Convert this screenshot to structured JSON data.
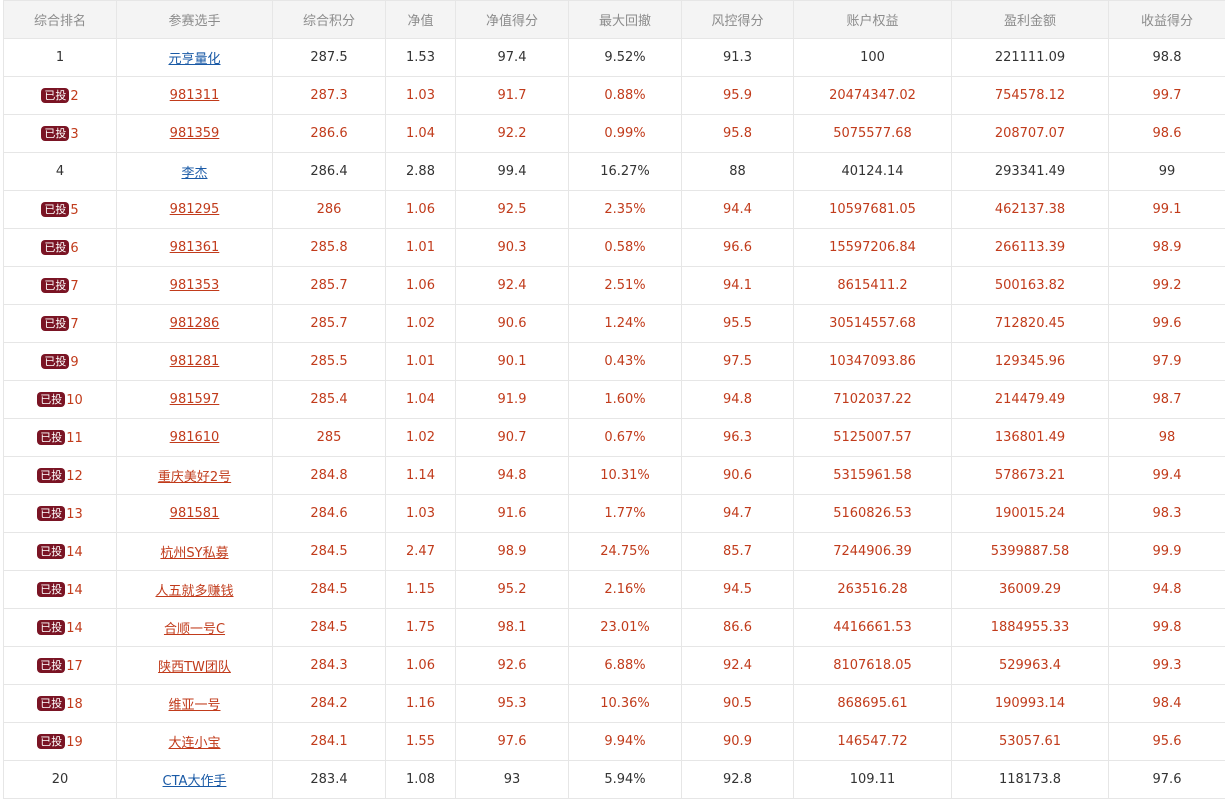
{
  "columns": [
    "综合排名",
    "参赛选手",
    "综合积分",
    "净值",
    "净值得分",
    "最大回撤",
    "风控得分",
    "账户权益",
    "盈利金额",
    "收益得分"
  ],
  "badge_label": "已投",
  "colors": {
    "invested_text": "#c13b1b",
    "normal_link": "#1a5aa6",
    "badge_bg": "#7a1424",
    "header_bg": "#f4f4f4"
  },
  "rows": [
    {
      "rank": "1",
      "invested": false,
      "name": "元亨量化",
      "score": "287.5",
      "nav": "1.53",
      "nav_score": "97.4",
      "max_dd": "9.52%",
      "risk_score": "91.3",
      "equity": "100",
      "profit": "221111.09",
      "return_score": "98.8"
    },
    {
      "rank": "2",
      "invested": true,
      "name": "981311",
      "score": "287.3",
      "nav": "1.03",
      "nav_score": "91.7",
      "max_dd": "0.88%",
      "risk_score": "95.9",
      "equity": "20474347.02",
      "profit": "754578.12",
      "return_score": "99.7"
    },
    {
      "rank": "3",
      "invested": true,
      "name": "981359",
      "score": "286.6",
      "nav": "1.04",
      "nav_score": "92.2",
      "max_dd": "0.99%",
      "risk_score": "95.8",
      "equity": "5075577.68",
      "profit": "208707.07",
      "return_score": "98.6"
    },
    {
      "rank": "4",
      "invested": false,
      "name": "李杰",
      "score": "286.4",
      "nav": "2.88",
      "nav_score": "99.4",
      "max_dd": "16.27%",
      "risk_score": "88",
      "equity": "40124.14",
      "profit": "293341.49",
      "return_score": "99"
    },
    {
      "rank": "5",
      "invested": true,
      "name": "981295",
      "score": "286",
      "nav": "1.06",
      "nav_score": "92.5",
      "max_dd": "2.35%",
      "risk_score": "94.4",
      "equity": "10597681.05",
      "profit": "462137.38",
      "return_score": "99.1"
    },
    {
      "rank": "6",
      "invested": true,
      "name": "981361",
      "score": "285.8",
      "nav": "1.01",
      "nav_score": "90.3",
      "max_dd": "0.58%",
      "risk_score": "96.6",
      "equity": "15597206.84",
      "profit": "266113.39",
      "return_score": "98.9"
    },
    {
      "rank": "7",
      "invested": true,
      "name": "981353",
      "score": "285.7",
      "nav": "1.06",
      "nav_score": "92.4",
      "max_dd": "2.51%",
      "risk_score": "94.1",
      "equity": "8615411.2",
      "profit": "500163.82",
      "return_score": "99.2"
    },
    {
      "rank": "7",
      "invested": true,
      "name": "981286",
      "score": "285.7",
      "nav": "1.02",
      "nav_score": "90.6",
      "max_dd": "1.24%",
      "risk_score": "95.5",
      "equity": "30514557.68",
      "profit": "712820.45",
      "return_score": "99.6"
    },
    {
      "rank": "9",
      "invested": true,
      "name": "981281",
      "score": "285.5",
      "nav": "1.01",
      "nav_score": "90.1",
      "max_dd": "0.43%",
      "risk_score": "97.5",
      "equity": "10347093.86",
      "profit": "129345.96",
      "return_score": "97.9"
    },
    {
      "rank": "10",
      "invested": true,
      "name": "981597",
      "score": "285.4",
      "nav": "1.04",
      "nav_score": "91.9",
      "max_dd": "1.60%",
      "risk_score": "94.8",
      "equity": "7102037.22",
      "profit": "214479.49",
      "return_score": "98.7"
    },
    {
      "rank": "11",
      "invested": true,
      "name": "981610",
      "score": "285",
      "nav": "1.02",
      "nav_score": "90.7",
      "max_dd": "0.67%",
      "risk_score": "96.3",
      "equity": "5125007.57",
      "profit": "136801.49",
      "return_score": "98"
    },
    {
      "rank": "12",
      "invested": true,
      "name": "重庆美好2号",
      "score": "284.8",
      "nav": "1.14",
      "nav_score": "94.8",
      "max_dd": "10.31%",
      "risk_score": "90.6",
      "equity": "5315961.58",
      "profit": "578673.21",
      "return_score": "99.4"
    },
    {
      "rank": "13",
      "invested": true,
      "name": "981581",
      "score": "284.6",
      "nav": "1.03",
      "nav_score": "91.6",
      "max_dd": "1.77%",
      "risk_score": "94.7",
      "equity": "5160826.53",
      "profit": "190015.24",
      "return_score": "98.3"
    },
    {
      "rank": "14",
      "invested": true,
      "name": "杭州SY私募",
      "score": "284.5",
      "nav": "2.47",
      "nav_score": "98.9",
      "max_dd": "24.75%",
      "risk_score": "85.7",
      "equity": "7244906.39",
      "profit": "5399887.58",
      "return_score": "99.9"
    },
    {
      "rank": "14",
      "invested": true,
      "name": "人五就多赚钱",
      "score": "284.5",
      "nav": "1.15",
      "nav_score": "95.2",
      "max_dd": "2.16%",
      "risk_score": "94.5",
      "equity": "263516.28",
      "profit": "36009.29",
      "return_score": "94.8"
    },
    {
      "rank": "14",
      "invested": true,
      "name": "合顺一号C",
      "score": "284.5",
      "nav": "1.75",
      "nav_score": "98.1",
      "max_dd": "23.01%",
      "risk_score": "86.6",
      "equity": "4416661.53",
      "profit": "1884955.33",
      "return_score": "99.8"
    },
    {
      "rank": "17",
      "invested": true,
      "name": "陕西TW团队",
      "score": "284.3",
      "nav": "1.06",
      "nav_score": "92.6",
      "max_dd": "6.88%",
      "risk_score": "92.4",
      "equity": "8107618.05",
      "profit": "529963.4",
      "return_score": "99.3"
    },
    {
      "rank": "18",
      "invested": true,
      "name": "维亚一号",
      "score": "284.2",
      "nav": "1.16",
      "nav_score": "95.3",
      "max_dd": "10.36%",
      "risk_score": "90.5",
      "equity": "868695.61",
      "profit": "190993.14",
      "return_score": "98.4"
    },
    {
      "rank": "19",
      "invested": true,
      "name": "大连小宝",
      "score": "284.1",
      "nav": "1.55",
      "nav_score": "97.6",
      "max_dd": "9.94%",
      "risk_score": "90.9",
      "equity": "146547.72",
      "profit": "53057.61",
      "return_score": "95.6"
    },
    {
      "rank": "20",
      "invested": false,
      "name": "CTA大作手",
      "score": "283.4",
      "nav": "1.08",
      "nav_score": "93",
      "max_dd": "5.94%",
      "risk_score": "92.8",
      "equity": "109.11",
      "profit": "118173.8",
      "return_score": "97.6"
    }
  ]
}
